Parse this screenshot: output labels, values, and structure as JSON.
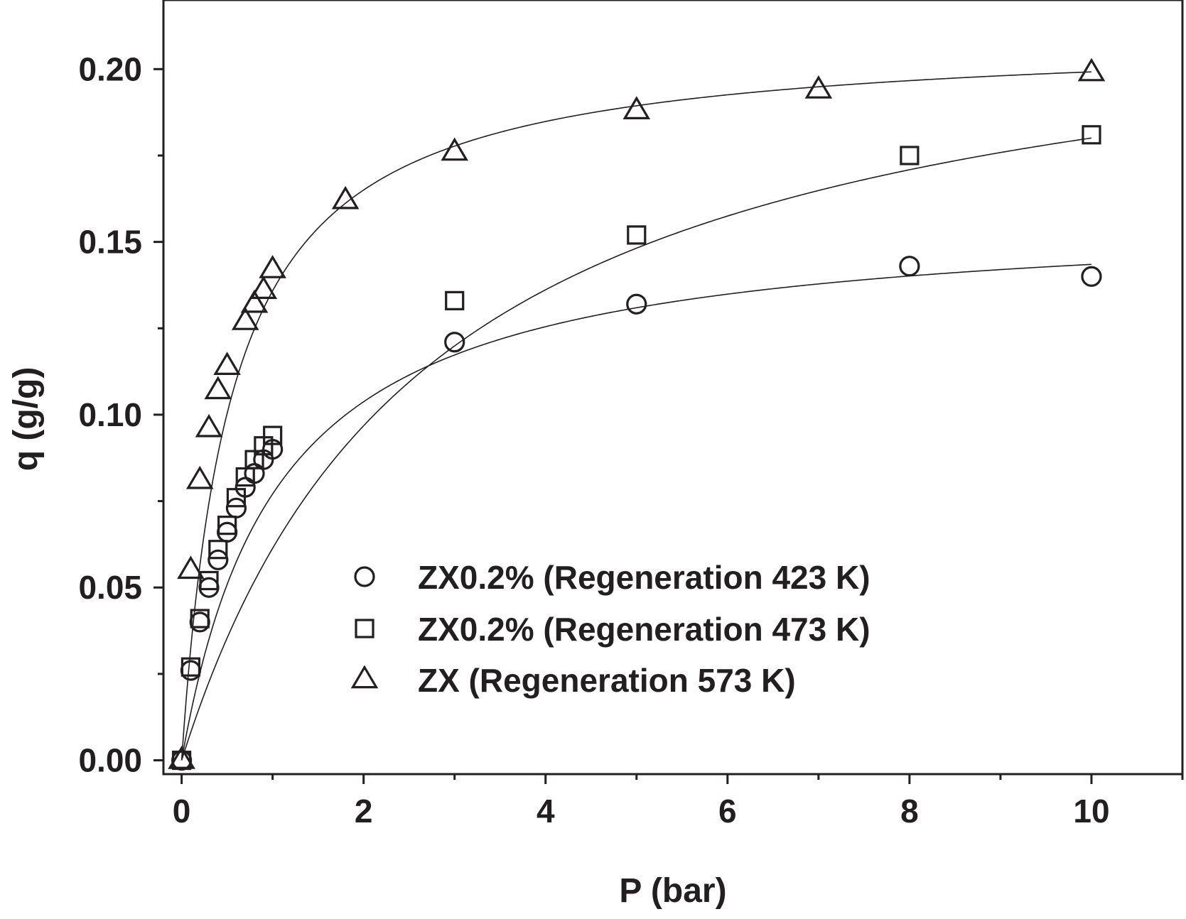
{
  "chart_data": {
    "type": "scatter",
    "xlabel": "P (bar)",
    "ylabel": "q (g/g)",
    "xlim": [
      -0.2,
      11.0
    ],
    "ylim": [
      -0.004,
      0.22
    ],
    "x_ticks": [
      0,
      2,
      4,
      6,
      8,
      10
    ],
    "x_tick_labels": [
      "0",
      "2",
      "4",
      "6",
      "8",
      "10"
    ],
    "y_ticks": [
      0.0,
      0.05,
      0.1,
      0.15,
      0.2
    ],
    "y_tick_labels": [
      "0.00",
      "0.05",
      "0.10",
      "0.15",
      "0.20"
    ],
    "grid": false,
    "legend_position": "lower-right",
    "colors": {
      "ink": "#231f20",
      "background": "#ffffff"
    },
    "series": [
      {
        "name": "ZX0.2% (Regeneration 423 K)",
        "marker": "circle",
        "x": [
          0,
          0.1,
          0.2,
          0.3,
          0.4,
          0.5,
          0.6,
          0.7,
          0.8,
          0.9,
          1.0,
          3,
          5,
          8,
          10
        ],
        "y": [
          0.0,
          0.026,
          0.04,
          0.05,
          0.058,
          0.066,
          0.073,
          0.079,
          0.083,
          0.087,
          0.09,
          0.121,
          0.132,
          0.143,
          0.14
        ],
        "fit": {
          "model": "langmuir",
          "qmax": 0.1587,
          "b": 0.944
        }
      },
      {
        "name": "ZX0.2% (Regeneration 473 K)",
        "marker": "square",
        "x": [
          0,
          0.1,
          0.2,
          0.3,
          0.4,
          0.5,
          0.6,
          0.7,
          0.8,
          0.9,
          1.0,
          3,
          5,
          8,
          10
        ],
        "y": [
          0.0,
          0.027,
          0.041,
          0.052,
          0.061,
          0.068,
          0.076,
          0.082,
          0.087,
          0.091,
          0.094,
          0.133,
          0.152,
          0.175,
          0.181
        ],
        "fit": {
          "model": "langmuir",
          "qmax": 0.2294,
          "b": 0.365
        }
      },
      {
        "name": "ZX (Regeneration 573 K)",
        "marker": "triangle",
        "x": [
          0,
          0.1,
          0.2,
          0.3,
          0.4,
          0.5,
          0.7,
          0.8,
          0.9,
          1.0,
          1.8,
          3,
          5,
          7,
          10
        ],
        "y": [
          0.0,
          0.055,
          0.081,
          0.096,
          0.107,
          0.114,
          0.127,
          0.132,
          0.136,
          0.142,
          0.162,
          0.176,
          0.188,
          0.194,
          0.199
        ],
        "fit": {
          "model": "langmuir",
          "qmax": 0.2101,
          "b": 1.83
        }
      }
    ]
  }
}
